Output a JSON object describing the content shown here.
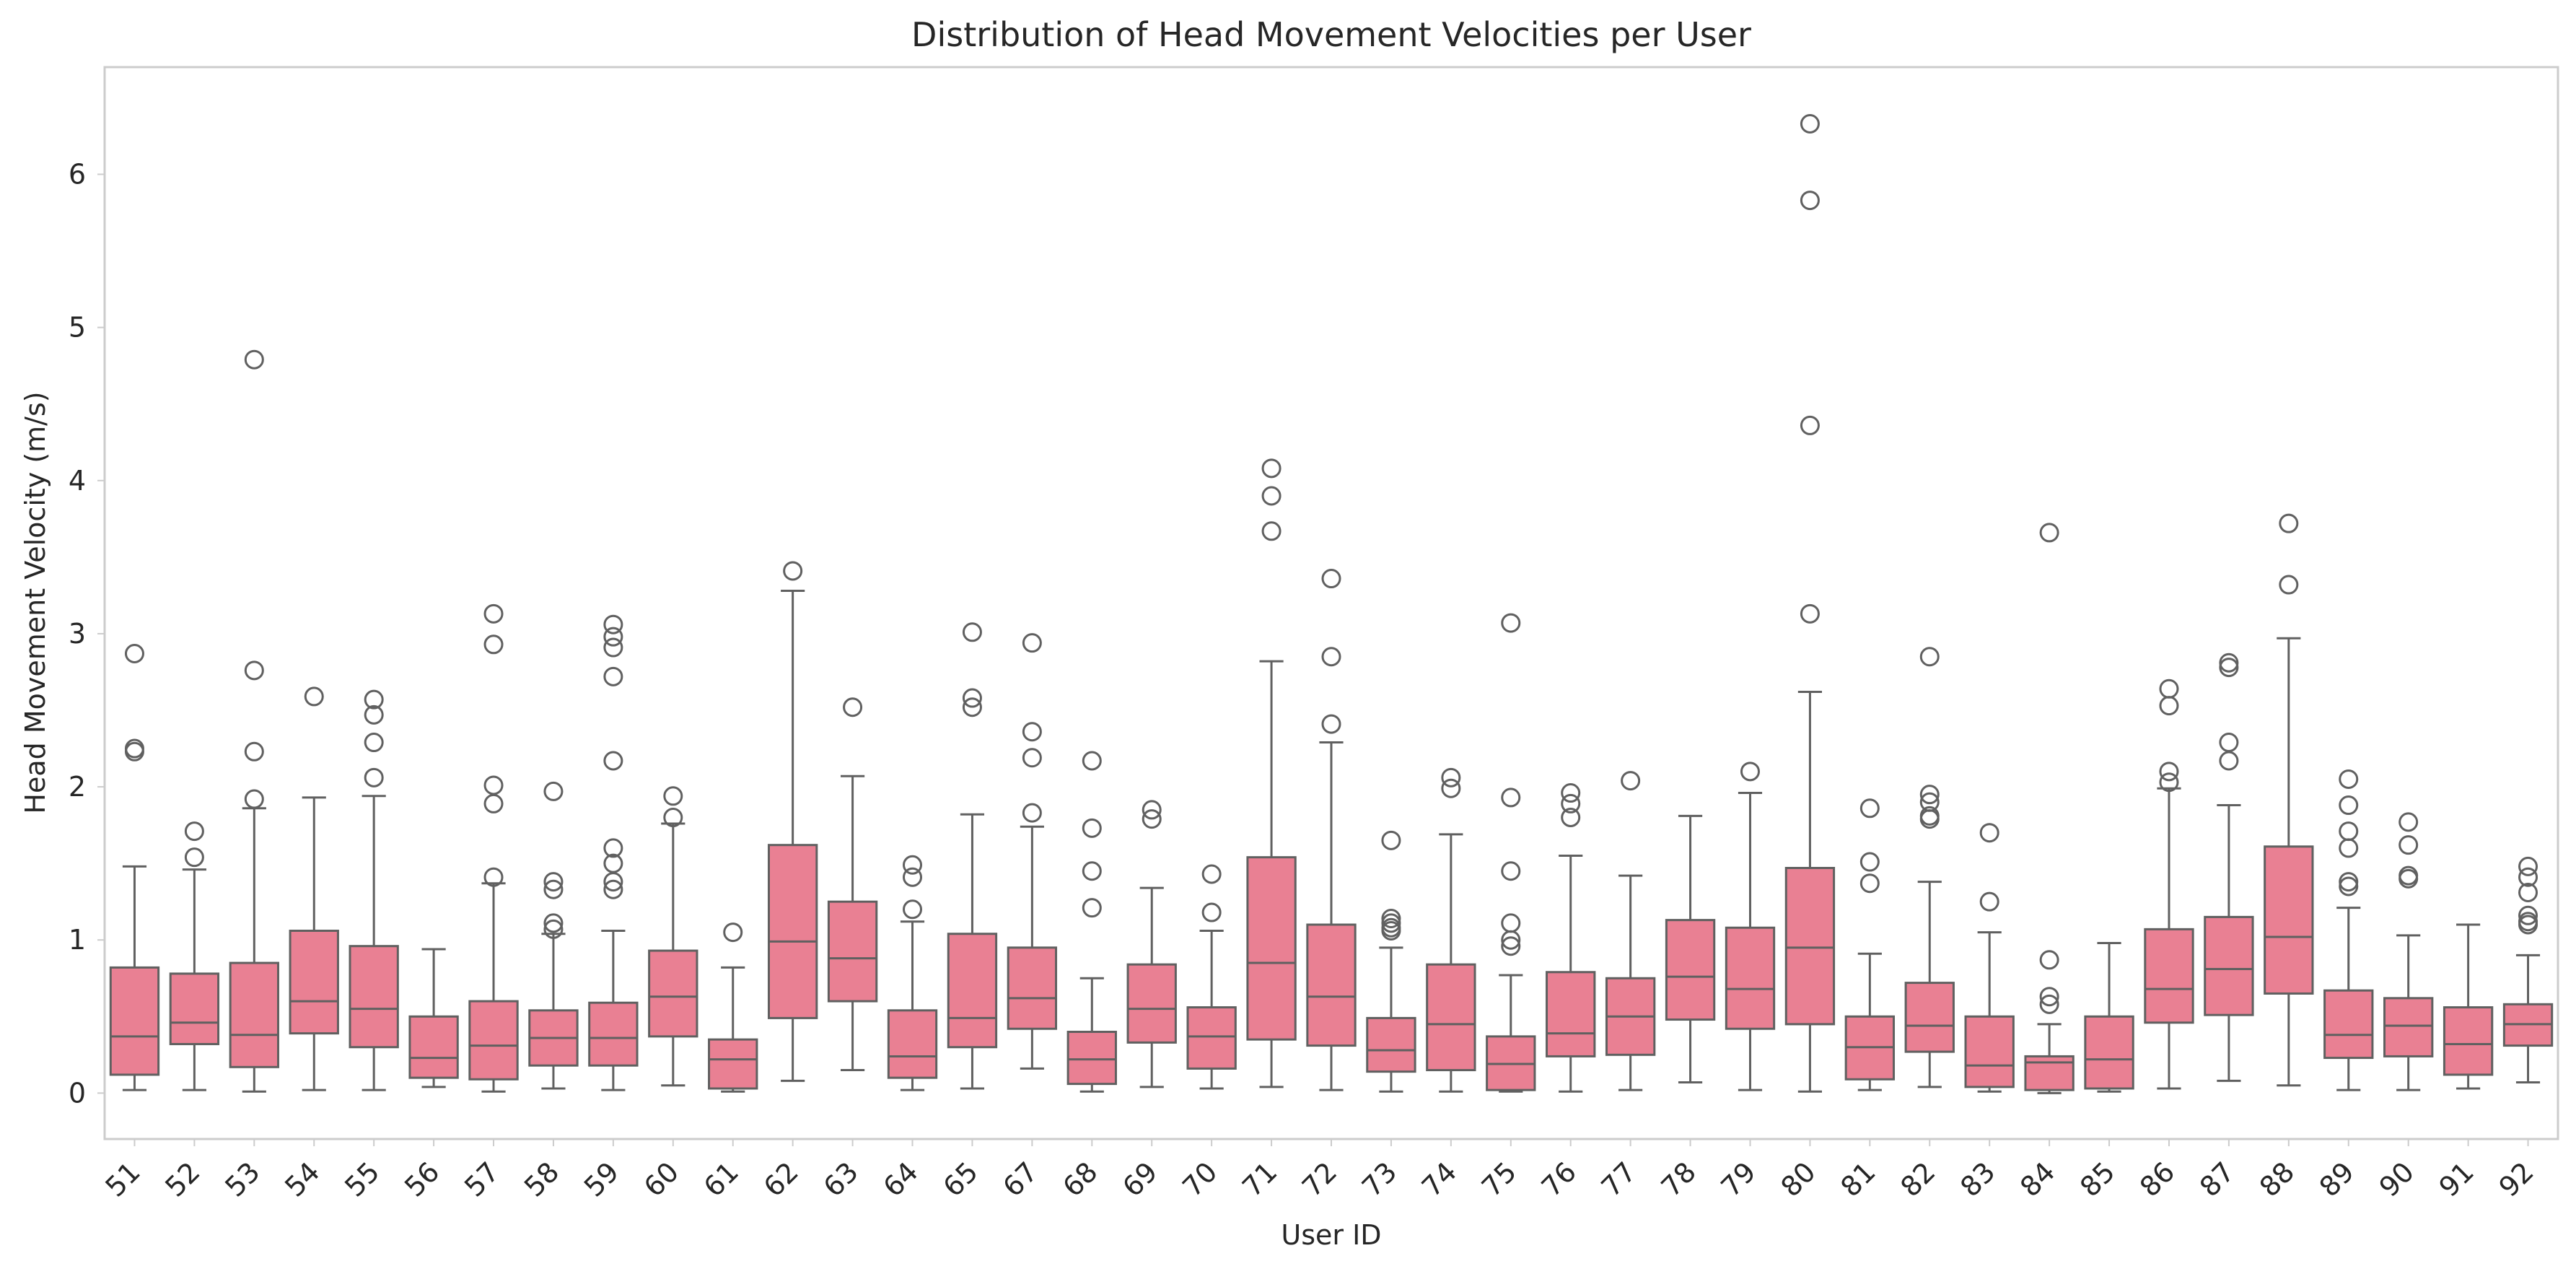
{
  "chart_data": {
    "type": "box",
    "title": "Distribution of Head Movement Velocities per User",
    "xlabel": "User ID",
    "ylabel": "Head Movement Velocity (m/s)",
    "ylim": [
      -0.3,
      6.7
    ],
    "yticks": [
      0,
      1,
      2,
      3,
      4,
      5,
      6
    ],
    "grid": false,
    "colors": {
      "box_fill": "#e98093",
      "line": "#606060",
      "frame": "#cccccc",
      "text": "#262626"
    },
    "series": [
      {
        "category": "51",
        "whisker_low": 0.02,
        "q1": 0.12,
        "median": 0.37,
        "q3": 0.82,
        "whisker_high": 1.48,
        "outliers": [
          2.87,
          2.25,
          2.23
        ]
      },
      {
        "category": "52",
        "whisker_low": 0.02,
        "q1": 0.32,
        "median": 0.46,
        "q3": 0.78,
        "whisker_high": 1.46,
        "outliers": [
          1.71,
          1.54
        ]
      },
      {
        "category": "53",
        "whisker_low": 0.01,
        "q1": 0.17,
        "median": 0.38,
        "q3": 0.85,
        "whisker_high": 1.86,
        "outliers": [
          4.79,
          2.76,
          2.23,
          1.92
        ]
      },
      {
        "category": "54",
        "whisker_low": 0.02,
        "q1": 0.39,
        "median": 0.6,
        "q3": 1.06,
        "whisker_high": 1.93,
        "outliers": [
          2.59
        ]
      },
      {
        "category": "55",
        "whisker_low": 0.02,
        "q1": 0.3,
        "median": 0.55,
        "q3": 0.96,
        "whisker_high": 1.94,
        "outliers": [
          2.57,
          2.47,
          2.29,
          2.06
        ]
      },
      {
        "category": "56",
        "whisker_low": 0.04,
        "q1": 0.1,
        "median": 0.23,
        "q3": 0.5,
        "whisker_high": 0.94,
        "outliers": []
      },
      {
        "category": "57",
        "whisker_low": 0.01,
        "q1": 0.09,
        "median": 0.31,
        "q3": 0.6,
        "whisker_high": 1.37,
        "outliers": [
          3.13,
          2.93,
          2.01,
          1.89,
          1.41
        ]
      },
      {
        "category": "58",
        "whisker_low": 0.03,
        "q1": 0.18,
        "median": 0.36,
        "q3": 0.54,
        "whisker_high": 1.04,
        "outliers": [
          1.97,
          1.38,
          1.33,
          1.11,
          1.07
        ]
      },
      {
        "category": "59",
        "whisker_low": 0.02,
        "q1": 0.18,
        "median": 0.36,
        "q3": 0.59,
        "whisker_high": 1.06,
        "outliers": [
          3.06,
          2.98,
          2.91,
          2.72,
          2.17,
          1.6,
          1.5,
          1.38,
          1.33
        ]
      },
      {
        "category": "60",
        "whisker_low": 0.05,
        "q1": 0.37,
        "median": 0.63,
        "q3": 0.93,
        "whisker_high": 1.76,
        "outliers": [
          1.94,
          1.8
        ]
      },
      {
        "category": "61",
        "whisker_low": 0.01,
        "q1": 0.03,
        "median": 0.22,
        "q3": 0.35,
        "whisker_high": 0.82,
        "outliers": [
          1.05
        ]
      },
      {
        "category": "62",
        "whisker_low": 0.08,
        "q1": 0.49,
        "median": 0.99,
        "q3": 1.62,
        "whisker_high": 3.28,
        "outliers": [
          3.41
        ]
      },
      {
        "category": "63",
        "whisker_low": 0.15,
        "q1": 0.6,
        "median": 0.88,
        "q3": 1.25,
        "whisker_high": 2.07,
        "outliers": [
          2.52
        ]
      },
      {
        "category": "64",
        "whisker_low": 0.02,
        "q1": 0.1,
        "median": 0.24,
        "q3": 0.54,
        "whisker_high": 1.12,
        "outliers": [
          1.49,
          1.41,
          1.2
        ]
      },
      {
        "category": "65",
        "whisker_low": 0.03,
        "q1": 0.3,
        "median": 0.49,
        "q3": 1.04,
        "whisker_high": 1.82,
        "outliers": [
          3.01,
          2.58,
          2.52
        ]
      },
      {
        "category": "67",
        "whisker_low": 0.16,
        "q1": 0.42,
        "median": 0.62,
        "q3": 0.95,
        "whisker_high": 1.74,
        "outliers": [
          2.94,
          2.36,
          2.19,
          1.83
        ]
      },
      {
        "category": "68",
        "whisker_low": 0.01,
        "q1": 0.06,
        "median": 0.22,
        "q3": 0.4,
        "whisker_high": 0.75,
        "outliers": [
          2.17,
          1.73,
          1.45,
          1.21
        ]
      },
      {
        "category": "69",
        "whisker_low": 0.04,
        "q1": 0.33,
        "median": 0.55,
        "q3": 0.84,
        "whisker_high": 1.34,
        "outliers": [
          1.85,
          1.79
        ]
      },
      {
        "category": "70",
        "whisker_low": 0.03,
        "q1": 0.16,
        "median": 0.37,
        "q3": 0.56,
        "whisker_high": 1.06,
        "outliers": [
          1.43,
          1.18
        ]
      },
      {
        "category": "71",
        "whisker_low": 0.04,
        "q1": 0.35,
        "median": 0.85,
        "q3": 1.54,
        "whisker_high": 2.82,
        "outliers": [
          4.08,
          3.9,
          3.67
        ]
      },
      {
        "category": "72",
        "whisker_low": 0.02,
        "q1": 0.31,
        "median": 0.63,
        "q3": 1.1,
        "whisker_high": 2.29,
        "outliers": [
          3.36,
          2.85,
          2.41
        ]
      },
      {
        "category": "73",
        "whisker_low": 0.01,
        "q1": 0.14,
        "median": 0.28,
        "q3": 0.49,
        "whisker_high": 0.95,
        "outliers": [
          1.65,
          1.14,
          1.11,
          1.08,
          1.06
        ]
      },
      {
        "category": "74",
        "whisker_low": 0.01,
        "q1": 0.15,
        "median": 0.45,
        "q3": 0.84,
        "whisker_high": 1.69,
        "outliers": [
          2.06,
          1.99
        ]
      },
      {
        "category": "75",
        "whisker_low": 0.01,
        "q1": 0.02,
        "median": 0.19,
        "q3": 0.37,
        "whisker_high": 0.77,
        "outliers": [
          3.07,
          1.93,
          1.45,
          1.11,
          1.0,
          0.96
        ]
      },
      {
        "category": "76",
        "whisker_low": 0.01,
        "q1": 0.24,
        "median": 0.39,
        "q3": 0.79,
        "whisker_high": 1.55,
        "outliers": [
          1.96,
          1.89,
          1.8
        ]
      },
      {
        "category": "77",
        "whisker_low": 0.02,
        "q1": 0.25,
        "median": 0.5,
        "q3": 0.75,
        "whisker_high": 1.42,
        "outliers": [
          2.04
        ]
      },
      {
        "category": "78",
        "whisker_low": 0.07,
        "q1": 0.48,
        "median": 0.76,
        "q3": 1.13,
        "whisker_high": 1.81,
        "outliers": []
      },
      {
        "category": "79",
        "whisker_low": 0.02,
        "q1": 0.42,
        "median": 0.68,
        "q3": 1.08,
        "whisker_high": 1.96,
        "outliers": [
          2.1
        ]
      },
      {
        "category": "80",
        "whisker_low": 0.01,
        "q1": 0.45,
        "median": 0.95,
        "q3": 1.47,
        "whisker_high": 2.62,
        "outliers": [
          6.33,
          5.83,
          4.36,
          3.13
        ]
      },
      {
        "category": "81",
        "whisker_low": 0.02,
        "q1": 0.09,
        "median": 0.3,
        "q3": 0.5,
        "whisker_high": 0.91,
        "outliers": [
          1.86,
          1.51,
          1.37
        ]
      },
      {
        "category": "82",
        "whisker_low": 0.04,
        "q1": 0.27,
        "median": 0.44,
        "q3": 0.72,
        "whisker_high": 1.38,
        "outliers": [
          2.85,
          1.95,
          1.9,
          1.81,
          1.79
        ]
      },
      {
        "category": "83",
        "whisker_low": 0.01,
        "q1": 0.04,
        "median": 0.18,
        "q3": 0.5,
        "whisker_high": 1.05,
        "outliers": [
          1.7,
          1.25
        ]
      },
      {
        "category": "84",
        "whisker_low": 0.0,
        "q1": 0.02,
        "median": 0.2,
        "q3": 0.24,
        "whisker_high": 0.45,
        "outliers": [
          3.66,
          0.87,
          0.63,
          0.58
        ]
      },
      {
        "category": "85",
        "whisker_low": 0.01,
        "q1": 0.03,
        "median": 0.22,
        "q3": 0.5,
        "whisker_high": 0.98,
        "outliers": []
      },
      {
        "category": "86",
        "whisker_low": 0.03,
        "q1": 0.46,
        "median": 0.68,
        "q3": 1.07,
        "whisker_high": 1.99,
        "outliers": [
          2.64,
          2.53,
          2.1,
          2.03
        ]
      },
      {
        "category": "87",
        "whisker_low": 0.08,
        "q1": 0.51,
        "median": 0.81,
        "q3": 1.15,
        "whisker_high": 1.88,
        "outliers": [
          2.81,
          2.78,
          2.29,
          2.17
        ]
      },
      {
        "category": "88",
        "whisker_low": 0.05,
        "q1": 0.65,
        "median": 1.02,
        "q3": 1.61,
        "whisker_high": 2.97,
        "outliers": [
          3.72,
          3.32
        ]
      },
      {
        "category": "89",
        "whisker_low": 0.02,
        "q1": 0.23,
        "median": 0.38,
        "q3": 0.67,
        "whisker_high": 1.21,
        "outliers": [
          2.05,
          1.88,
          1.71,
          1.6,
          1.38,
          1.35
        ]
      },
      {
        "category": "90",
        "whisker_low": 0.02,
        "q1": 0.24,
        "median": 0.44,
        "q3": 0.62,
        "whisker_high": 1.03,
        "outliers": [
          1.77,
          1.62,
          1.42,
          1.4
        ]
      },
      {
        "category": "91",
        "whisker_low": 0.03,
        "q1": 0.12,
        "median": 0.32,
        "q3": 0.56,
        "whisker_high": 1.1,
        "outliers": []
      },
      {
        "category": "92",
        "whisker_low": 0.07,
        "q1": 0.31,
        "median": 0.45,
        "q3": 0.58,
        "whisker_high": 0.9,
        "outliers": [
          1.48,
          1.41,
          1.31,
          1.16,
          1.12,
          1.1
        ]
      }
    ]
  }
}
